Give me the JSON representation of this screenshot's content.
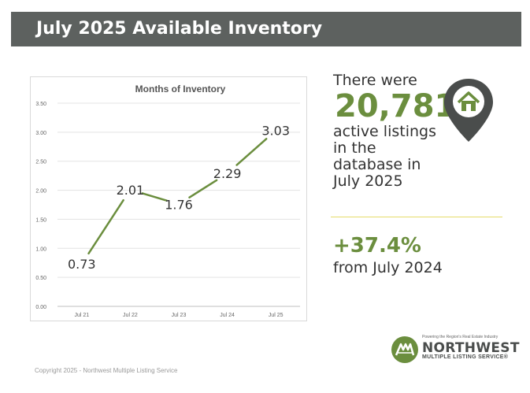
{
  "header": {
    "title": "July 2025 Available Inventory"
  },
  "stats": {
    "line1": "There were",
    "listings": "20,781",
    "line2": "active listings",
    "line3": "in the",
    "line4": "database in",
    "line5": "July 2025",
    "change": "+37.4%",
    "change_sub": "from July 2024"
  },
  "logo": {
    "tagline": "Powering the Region's Real Estate Industry",
    "name": "NORTHWEST",
    "subname": "MULTIPLE LISTING SERVICE®"
  },
  "footer": {
    "copyright": "Copyright 2025 - Northwest Multiple Listing Service"
  },
  "colors": {
    "banner": "#5d615f",
    "accent_green": "#6b8e3e",
    "divider": "#e6dc6a",
    "pin": "#4a4d4c"
  },
  "icons": {
    "map_pin": "house-location-pin-icon",
    "logo": "nwmls-logo-icon"
  },
  "chart_data": {
    "type": "line",
    "title": "Months of Inventory",
    "xlabel": "",
    "ylabel": "",
    "categories": [
      "Jul 21",
      "Jul 22",
      "Jul 23",
      "Jul 24",
      "Jul 25"
    ],
    "values": [
      0.73,
      2.01,
      1.76,
      2.29,
      3.03
    ],
    "data_labels": [
      "0.73",
      "2.01",
      "1.76",
      "2.29",
      "3.03"
    ],
    "y_ticks": [
      "0.00",
      "0.50",
      "1.00",
      "1.50",
      "2.00",
      "2.50",
      "3.00",
      "3.50"
    ],
    "ylim": [
      0,
      3.5
    ],
    "grid": true,
    "series_color": "#6b8e3e",
    "legend": "none"
  }
}
